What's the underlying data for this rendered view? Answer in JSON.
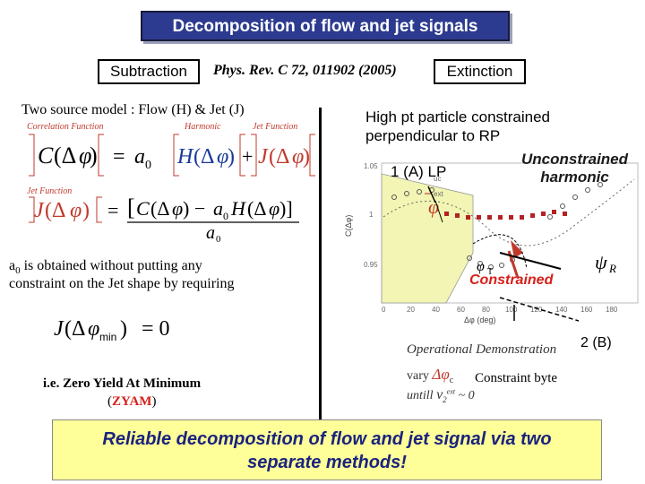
{
  "header": {
    "title": "Decomposition of flow and jet signals",
    "subtraction_label": "Subtraction",
    "reference": "Phys. Rev. C 72, 011902 (2005)",
    "extinction_label": "Extinction"
  },
  "left": {
    "model_text": "Two source model :  Flow (H) & Jet (J)",
    "correlation_label": "Correlation Function",
    "harmonic_label": "Harmonic",
    "jet_function_label": "Jet Function",
    "jet_function_label2": "Jet Function",
    "a0_text_1": "a",
    "a0_sub": "0",
    "a0_text_2": " is obtained  without putting any",
    "a0_text_3": "constraint on the Jet shape by requiring",
    "zyam_line1": "i.e. Zero Yield At Minimum",
    "zyam_line2_open": "(",
    "zyam_line2_bold": "ZYAM",
    "zyam_line2_close": ")"
  },
  "right": {
    "high_pt_line1": "High pt particle constrained",
    "high_pt_line2": "perpendicular to RP",
    "unconstrained_line1": "Unconstrained",
    "unconstrained_line2": "harmonic",
    "label_1a": "1 (A)  LP",
    "constrained_label": "Constrained",
    "label_2b": "2 (B)",
    "operational_demo": "Operational Demonstration",
    "constraint_byte": "Constraint byte",
    "vary_text": "vary",
    "untill_text": "untill"
  },
  "chart_axes": {
    "y_label": "C(Δφ)",
    "y_ticks": [
      "1.05",
      "1",
      "0.95"
    ],
    "x_ticks": [
      "0",
      "20",
      "40",
      "60",
      "80",
      "100",
      "120",
      "140",
      "160",
      "180"
    ],
    "x_label": "Δφ (deg)",
    "legend_uc": "uc",
    "legend_ext": "ext"
  },
  "footer": {
    "line1": "Reliable decomposition of flow and jet signal via two",
    "line2": "separate methods!"
  },
  "colors": {
    "title_bg": "#2c3b8f",
    "bottom_bg": "#ffff99",
    "accent_red": "#d6201b",
    "wedge_fill": "#f2f5b3"
  }
}
